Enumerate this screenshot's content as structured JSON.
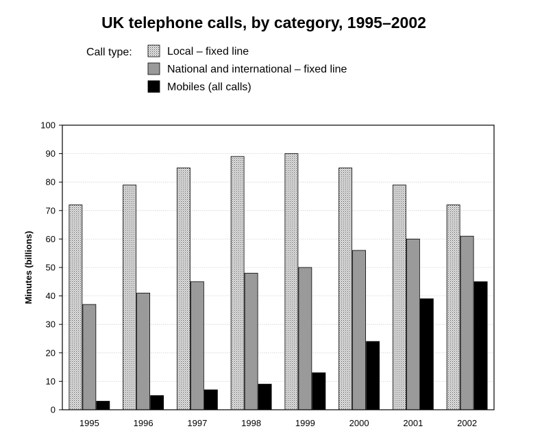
{
  "chart_data": {
    "type": "bar",
    "title": "UK telephone calls, by category, 1995–2002",
    "legend_title": "Call type:",
    "legend_position": "top-left",
    "xlabel": "",
    "ylabel": "Minutes (billions)",
    "ylim": [
      0,
      100
    ],
    "yticks": [
      0,
      10,
      20,
      30,
      40,
      50,
      60,
      70,
      80,
      90,
      100
    ],
    "grid": true,
    "categories": [
      "1995",
      "1996",
      "1997",
      "1998",
      "1999",
      "2000",
      "2001",
      "2002"
    ],
    "series": [
      {
        "name": "Local – fixed line",
        "values": [
          72,
          79,
          85,
          89,
          90,
          85,
          79,
          72
        ],
        "color": "#c9c9c9",
        "pattern": "dotted"
      },
      {
        "name": "National and international – fixed line",
        "values": [
          37,
          41,
          45,
          48,
          50,
          56,
          60,
          61
        ],
        "color": "#9a9a9a",
        "pattern": "solid"
      },
      {
        "name": "Mobiles (all calls)",
        "values": [
          3,
          5,
          7,
          9,
          13,
          24,
          39,
          45
        ],
        "color": "#000000",
        "pattern": "solid"
      }
    ]
  }
}
